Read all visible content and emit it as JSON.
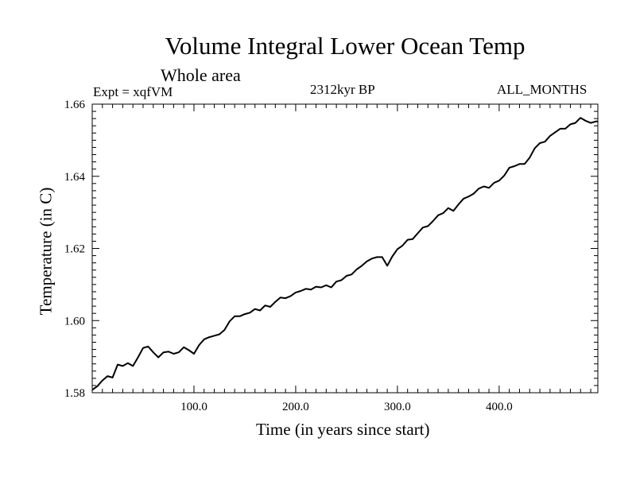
{
  "chart_data": {
    "type": "line",
    "title": "Volume Integral Lower Ocean Temp",
    "subtitle": "Whole area",
    "experiment": "Expt = xqfVM",
    "period": "2312kyr BP",
    "months": "ALL_MONTHS",
    "xlabel": "Time (in years since start)",
    "ylabel": "Temperature (in C)",
    "xlim": [
      0,
      497
    ],
    "ylim": [
      1.58,
      1.66
    ],
    "xticks": [
      100,
      200,
      300,
      400
    ],
    "xtick_labels": [
      "100.0",
      "200.0",
      "300.0",
      "400.0"
    ],
    "yticks": [
      1.58,
      1.6,
      1.62,
      1.64,
      1.66
    ],
    "ytick_labels": [
      "1.58",
      "1.60",
      "1.62",
      "1.64",
      "1.66"
    ],
    "grid": false,
    "series": [
      {
        "name": "Volume Integral Lower Ocean Temp",
        "x": [
          0,
          5,
          10,
          15,
          20,
          25,
          30,
          35,
          40,
          45,
          50,
          55,
          60,
          65,
          70,
          75,
          80,
          85,
          90,
          95,
          100,
          105,
          110,
          115,
          120,
          125,
          130,
          135,
          140,
          145,
          150,
          155,
          160,
          165,
          170,
          175,
          180,
          185,
          190,
          195,
          200,
          205,
          210,
          215,
          220,
          225,
          230,
          235,
          240,
          245,
          250,
          255,
          260,
          265,
          270,
          275,
          280,
          285,
          290,
          295,
          300,
          305,
          310,
          315,
          320,
          325,
          330,
          335,
          340,
          345,
          350,
          355,
          360,
          365,
          370,
          375,
          380,
          385,
          390,
          395,
          400,
          405,
          410,
          415,
          420,
          425,
          430,
          435,
          440,
          445,
          450,
          455,
          460,
          465,
          470,
          475,
          480,
          485,
          490,
          495,
          497
        ],
        "values": [
          1.5808,
          1.5818,
          1.5834,
          1.5846,
          1.5842,
          1.5878,
          1.5874,
          1.5882,
          1.5874,
          1.5898,
          1.5924,
          1.5928,
          1.5912,
          1.5898,
          1.5912,
          1.5914,
          1.5908,
          1.5912,
          1.5926,
          1.5918,
          1.5908,
          1.5932,
          1.5948,
          1.5954,
          1.5958,
          1.5962,
          1.5974,
          1.5998,
          1.6012,
          1.6012,
          1.6018,
          1.6022,
          1.6032,
          1.6028,
          1.6042,
          1.6038,
          1.6052,
          1.6064,
          1.6062,
          1.6068,
          1.6078,
          1.6082,
          1.6088,
          1.6086,
          1.6094,
          1.6092,
          1.6098,
          1.6092,
          1.6108,
          1.6112,
          1.6124,
          1.6128,
          1.6142,
          1.6152,
          1.6164,
          1.6172,
          1.6176,
          1.6176,
          1.6152,
          1.6178,
          1.6198,
          1.6208,
          1.6224,
          1.6226,
          1.6242,
          1.6258,
          1.6262,
          1.6276,
          1.6292,
          1.6298,
          1.6312,
          1.6304,
          1.6322,
          1.6338,
          1.6344,
          1.6352,
          1.6366,
          1.6372,
          1.6368,
          1.6382,
          1.6388,
          1.6402,
          1.6424,
          1.6428,
          1.6434,
          1.6434,
          1.6452,
          1.6478,
          1.6492,
          1.6496,
          1.6512,
          1.6522,
          1.6532,
          1.6532,
          1.6544,
          1.6548,
          1.6562,
          1.6554,
          1.6548,
          1.6552,
          1.6552
        ]
      }
    ]
  }
}
